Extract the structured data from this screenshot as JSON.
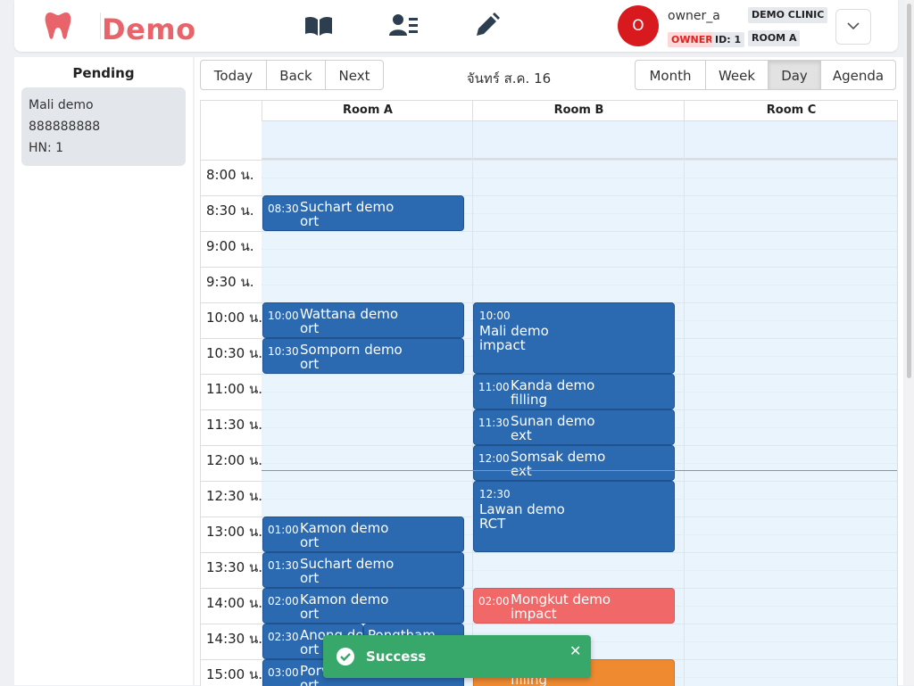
{
  "brand": {
    "name": "Demo",
    "accent": "#e8646a"
  },
  "nav": [
    {
      "icon": "book-icon",
      "label": "Book"
    },
    {
      "icon": "patient-list-icon",
      "label": "Patients"
    },
    {
      "icon": "edit-pencil-icon",
      "label": "Edit"
    }
  ],
  "user": {
    "avatar_letter": "O",
    "name": "owner_a",
    "role": "OWNER",
    "id": "ID: 1",
    "clinic": "DEMO CLINIC",
    "room": "ROOM A"
  },
  "sidebar": {
    "title": "Pending",
    "card": {
      "name": "Mali demo",
      "phone": "888888888",
      "hn": "HN: 1"
    }
  },
  "toolbar": {
    "today": "Today",
    "back": "Back",
    "next": "Next",
    "date": "จันทร์ ส.ค. 16",
    "views": [
      "Month",
      "Week",
      "Day",
      "Agenda"
    ],
    "active_view": "Day"
  },
  "rooms": [
    "Room A",
    "Room B",
    "Room C"
  ],
  "times": [
    "8:00 น.",
    "8:30 น.",
    "9:00 น.",
    "9:30 น.",
    "10:00 น.",
    "10:30 น.",
    "11:00 น.",
    "11:30 น.",
    "12:00 น.",
    "12:30 น.",
    "13:00 น.",
    "13:30 น.",
    "14:00 น.",
    "14:30 น.",
    "15:00 น."
  ],
  "events": [
    {
      "room": 0,
      "time": "08:30",
      "name": "Suchart demo",
      "sub": "ort",
      "color": "blue"
    },
    {
      "room": 0,
      "time": "10:00",
      "name": "Wattana demo",
      "sub": "ort",
      "color": "blue"
    },
    {
      "room": 0,
      "time": "10:30",
      "name": "Somporn demo",
      "sub": "ort",
      "color": "blue"
    },
    {
      "room": 0,
      "time": "01:00",
      "name": "Kamon demo",
      "sub": "ort",
      "color": "blue"
    },
    {
      "room": 0,
      "time": "01:30",
      "name": "Suchart demo",
      "sub": "ort",
      "color": "blue"
    },
    {
      "room": 0,
      "time": "02:00",
      "name": "Kamon demo",
      "sub": "ort",
      "color": "blue"
    },
    {
      "room": 0,
      "time": "02:30",
      "name": "Anong der",
      "sub": "ort",
      "color": "blue"
    },
    {
      "room": 0,
      "time": "02:30",
      "name": "Pongtham",
      "sub": "",
      "color": "blue"
    },
    {
      "room": 0,
      "time": "03:00",
      "name": "Porv",
      "sub": "ort",
      "color": "blue"
    },
    {
      "room": 1,
      "time": "10:00",
      "name": "Mali demo",
      "sub": "impact",
      "color": "blue"
    },
    {
      "room": 1,
      "time": "11:00",
      "name": "Kanda demo",
      "sub": "filling",
      "color": "blue"
    },
    {
      "room": 1,
      "time": "11:30",
      "name": "Sunan demo",
      "sub": "ext",
      "color": "blue"
    },
    {
      "room": 1,
      "time": "12:00",
      "name": "Somsak demo",
      "sub": "ext",
      "color": "blue"
    },
    {
      "room": 1,
      "time": "12:30",
      "name": "Lawan demo",
      "sub": "RCT",
      "color": "blue"
    },
    {
      "room": 1,
      "time": "02:00",
      "name": "Mongkut demo",
      "sub": "impact",
      "color": "red"
    },
    {
      "room": 1,
      "time": "",
      "name": "",
      "sub": "filling",
      "color": "orange"
    }
  ],
  "toast": {
    "message": "Success",
    "color": "#37a76a"
  }
}
